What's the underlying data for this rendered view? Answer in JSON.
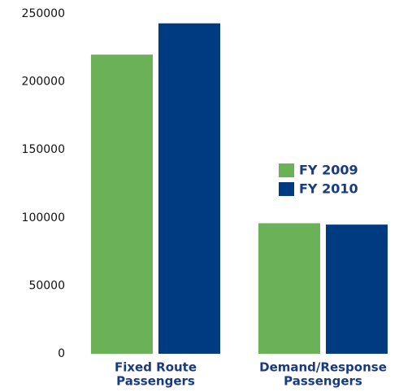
{
  "chart_data": {
    "type": "bar",
    "categories": [
      [
        "Fixed Route",
        "Passengers"
      ],
      [
        "Demand/Response",
        "Passengers"
      ]
    ],
    "series": [
      {
        "name": "FY 2009",
        "color": "#6ab157",
        "values": [
          220000,
          96000
        ]
      },
      {
        "name": "FY 2010",
        "color": "#003a80",
        "values": [
          243000,
          95000
        ]
      }
    ],
    "ylim": [
      0,
      250000
    ],
    "yticks": [
      0,
      50000,
      100000,
      150000,
      200000,
      250000
    ],
    "grid": false
  }
}
